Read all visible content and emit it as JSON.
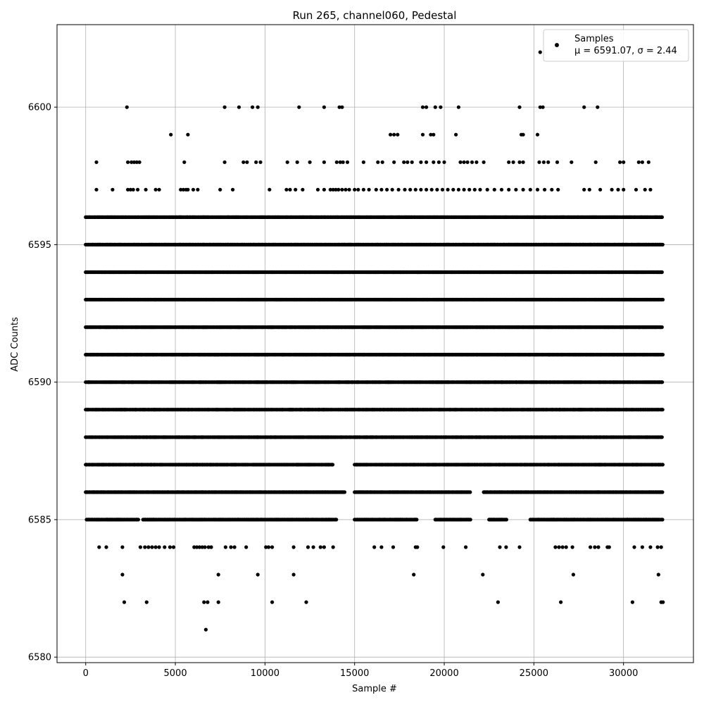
{
  "chart_data": {
    "type": "scatter",
    "title": "Run 265, channel060, Pedestal",
    "xlabel": "Sample #",
    "ylabel": "ADC Counts",
    "xlim": [
      -1600,
      33900
    ],
    "ylim": [
      6579.8,
      6603.0
    ],
    "x_ticks": [
      0,
      5000,
      10000,
      15000,
      20000,
      25000,
      30000
    ],
    "y_ticks": [
      6580,
      6585,
      6590,
      6595,
      6600
    ],
    "grid": true,
    "marker_color": "#000000",
    "legend": {
      "position": "top-right",
      "label_line1": "Samples",
      "label_line2": "μ = 6591.07, σ = 2.44"
    },
    "series": [
      {
        "name": "Samples",
        "points_note": "dense pedestal samples, x from 0 to 32200, y integer ADC values",
        "levels": [
          {
            "y": 6581,
            "x": [
              6700
            ]
          },
          {
            "y": 6582,
            "x": [
              2150,
              3400,
              6600,
              6800,
              7400,
              10400,
              12300,
              23000,
              26500,
              30500,
              32100,
              32200
            ]
          },
          {
            "y": 6583,
            "x": [
              2050,
              7400,
              9600,
              11600,
              18300,
              22150,
              27200,
              31950
            ]
          },
          {
            "y": 6584,
            "x": [
              750,
              1150,
              2050,
              3050,
              3300,
              3500,
              3700,
              3900,
              4100,
              4400,
              4700,
              4900,
              6050,
              6200,
              6350,
              6500,
              6650,
              6850,
              7000,
              7800,
              8100,
              8300,
              8950,
              10050,
              10200,
              10400,
              11600,
              12400,
              12700,
              13100,
              13300,
              13800,
              16100,
              16500,
              17150,
              18400,
              18500,
              19950,
              21200,
              23100,
              23450,
              24200,
              26200,
              26400,
              26600,
              26800,
              27150,
              28150,
              28400,
              28600,
              29100,
              29200,
              30600,
              31050,
              31500,
              31900,
              32100
            ]
          },
          {
            "y": 6585,
            "dense_ranges": [
              [
                50,
                3000
              ],
              [
                3200,
                14000
              ],
              [
                15000,
                18500
              ],
              [
                19500,
                21500
              ],
              [
                22500,
                23500
              ],
              [
                24800,
                32200
              ]
            ]
          },
          {
            "y": 6586,
            "dense_ranges": [
              [
                0,
                14500
              ],
              [
                15000,
                21500
              ],
              [
                22200,
                32200
              ]
            ]
          },
          {
            "y": 6587,
            "dense_ranges": [
              [
                0,
                13800
              ],
              [
                15000,
                32200
              ]
            ]
          },
          {
            "y": 6588,
            "dense_ranges": [
              [
                0,
                32200
              ]
            ]
          },
          {
            "y": 6589,
            "dense_ranges": [
              [
                0,
                32200
              ]
            ]
          },
          {
            "y": 6590,
            "dense_ranges": [
              [
                0,
                32200
              ]
            ]
          },
          {
            "y": 6591,
            "dense_ranges": [
              [
                0,
                32200
              ]
            ]
          },
          {
            "y": 6592,
            "dense_ranges": [
              [
                0,
                32200
              ]
            ]
          },
          {
            "y": 6593,
            "dense_ranges": [
              [
                0,
                32200
              ]
            ]
          },
          {
            "y": 6594,
            "dense_ranges": [
              [
                0,
                32200
              ]
            ]
          },
          {
            "y": 6595,
            "dense_ranges": [
              [
                0,
                32200
              ]
            ]
          },
          {
            "y": 6596,
            "dense_ranges": [
              [
                0,
                32200
              ]
            ]
          },
          {
            "y": 6597,
            "x": [
              600,
              1500,
              2350,
              2500,
              2650,
              2900,
              3350,
              3900,
              4100,
              5300,
              5450,
              5600,
              5700,
              6000,
              6250,
              7500,
              8200,
              10250,
              11200,
              11400,
              11700,
              12100,
              12950,
              13300,
              13650,
              13800,
              13950,
              14100,
              14300,
              14500,
              14700,
              15000,
              15200,
              15500,
              15800,
              16200,
              16500,
              16800,
              17100,
              17450,
              17800,
              18100,
              18400,
              18700,
              19000,
              19300,
              19600,
              19900,
              20200,
              20500,
              20800,
              21100,
              21400,
              21700,
              22000,
              22400,
              22800,
              23200,
              23600,
              24000,
              24400,
              24800,
              25200,
              25600,
              26000,
              26350,
              27800,
              28100,
              28700,
              29350,
              29700,
              30000,
              30700,
              31200,
              31500
            ]
          },
          {
            "y": 6598,
            "x": [
              600,
              2350,
              2550,
              2700,
              2850,
              3000,
              5500,
              7750,
              8800,
              9000,
              9500,
              9750,
              11250,
              11800,
              12500,
              13300,
              14000,
              14200,
              14350,
              14600,
              15500,
              16300,
              16550,
              17200,
              17750,
              17950,
              18200,
              18700,
              19000,
              19400,
              19700,
              20000,
              20900,
              21100,
              21300,
              21550,
              21800,
              22200,
              23600,
              23850,
              24200,
              24400,
              25300,
              25550,
              25800,
              26300,
              27100,
              28450,
              29800,
              30000,
              30850,
              31050,
              31400
            ]
          },
          {
            "y": 6599,
            "x": [
              4750,
              5700,
              17000,
              17200,
              17400,
              18800,
              19250,
              19400,
              20650,
              24300,
              24400,
              25200
            ]
          },
          {
            "y": 6600,
            "x": [
              2300,
              7750,
              8550,
              9300,
              9600,
              11900,
              13300,
              14150,
              14300,
              18800,
              19000,
              19500,
              19800,
              20800,
              24200,
              25350,
              25500,
              27800,
              28550
            ]
          },
          {
            "y": 6602,
            "x": [
              25350
            ]
          }
        ]
      }
    ]
  }
}
